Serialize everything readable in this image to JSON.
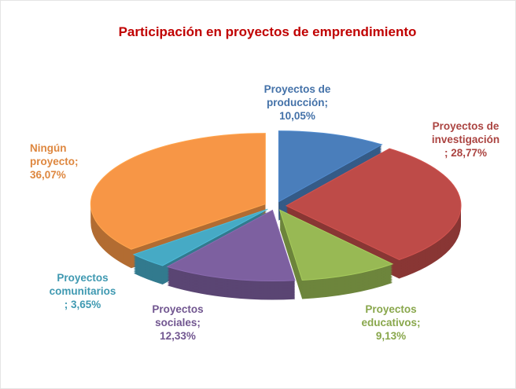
{
  "chart_data": {
    "type": "pie",
    "title": "Participación en proyectos de emprendimiento",
    "values": [
      10.05,
      28.77,
      9.13,
      12.33,
      3.65,
      36.07
    ],
    "value_labels": [
      "Proyectos de\nproducción;\n10,05%",
      "Proyectos de\ninvestigación\n; 28,77%",
      "Proyectos\neducativos;\n9,13%",
      "Proyectos\nsociales;\n12,33%",
      "Proyectos\ncomunitarios\n; 3,65%",
      "Ningún\nproyecto;\n36,07%"
    ],
    "colors": [
      "#4a7ebb",
      "#be4b48",
      "#98b954",
      "#7d60a0",
      "#46aac5",
      "#f79646"
    ]
  }
}
